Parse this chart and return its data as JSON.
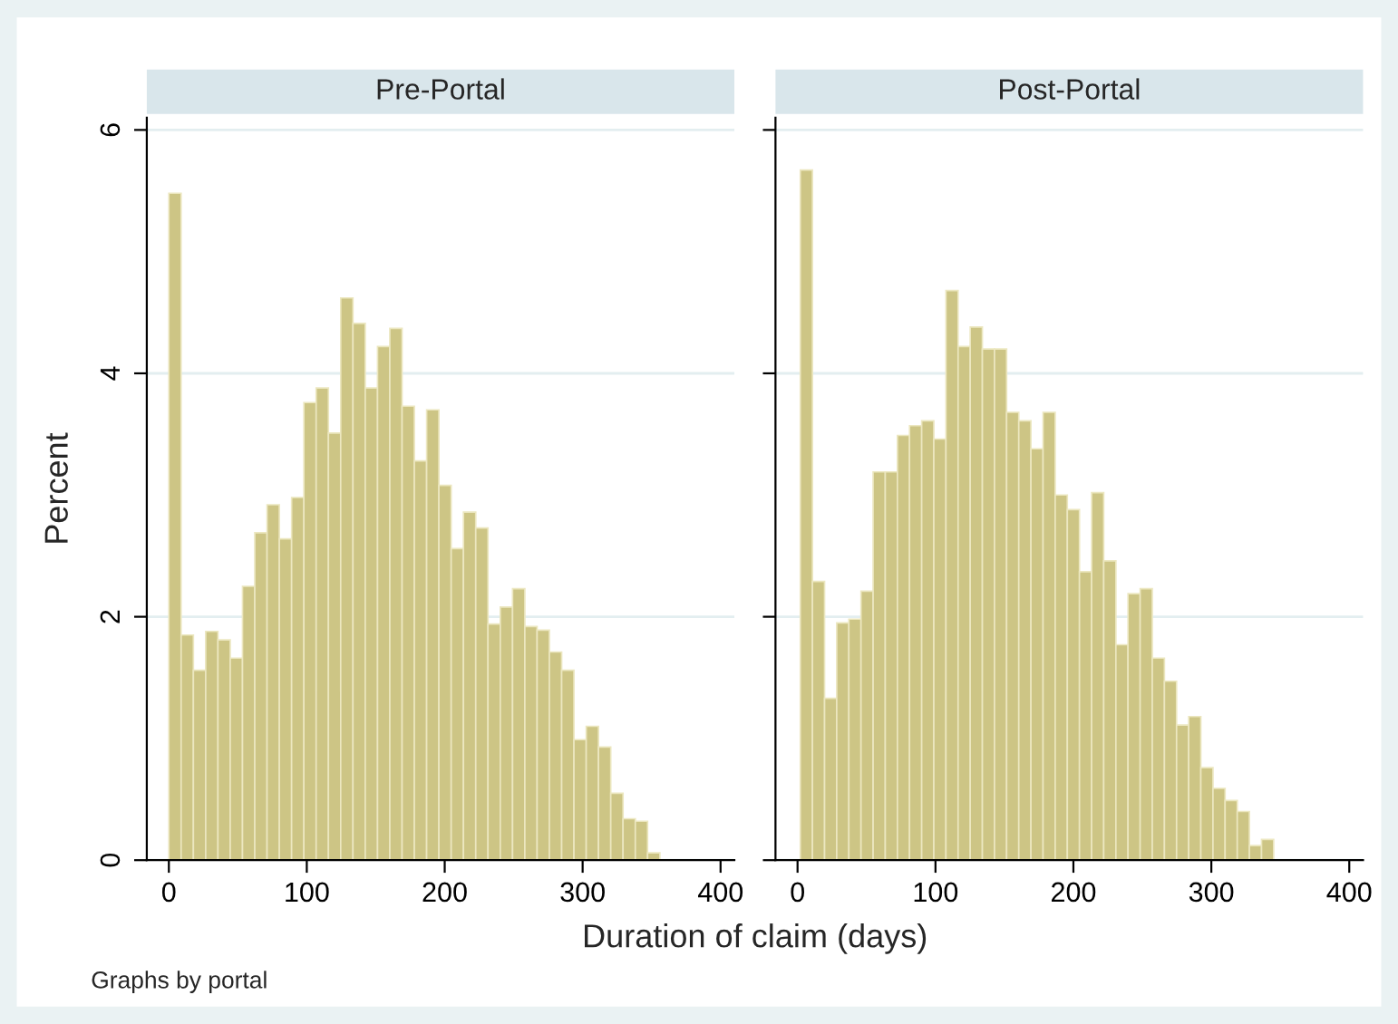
{
  "chart_data": [
    {
      "type": "histogram",
      "title": "Pre-Portal",
      "xlabel": "Duration of claim (days)",
      "ylabel": "Percent",
      "annotations": [
        "Graphs by portal"
      ],
      "color": "#cdc585",
      "bins": [
        0,
        8.9,
        17.8,
        26.7,
        35.6,
        44.5,
        53.4,
        62.3,
        71.2,
        80.1,
        89,
        97.9,
        106.8,
        115.7,
        124.6,
        133.5,
        142.4,
        151.3,
        160.2,
        169.1,
        178,
        186.9,
        195.8,
        204.7,
        213.6,
        222.5,
        231.4,
        240.3,
        249.2,
        258.1,
        267,
        275.9,
        284.8,
        293.7,
        302.6,
        311.5,
        320.4,
        329.3,
        338.2,
        347.1,
        356
      ],
      "values": [
        5.48,
        1.85,
        1.56,
        1.88,
        1.81,
        1.66,
        2.25,
        2.69,
        2.92,
        2.64,
        2.98,
        3.76,
        3.88,
        3.51,
        4.62,
        4.41,
        3.88,
        4.22,
        4.37,
        3.73,
        3.28,
        3.7,
        3.08,
        2.56,
        2.86,
        2.73,
        1.94,
        2.08,
        2.23,
        1.92,
        1.89,
        1.71,
        1.56,
        0.99,
        1.1,
        0.93,
        0.55,
        0.34,
        0.32,
        0.06
      ],
      "xlim": [
        -16,
        410
      ],
      "ylim": [
        0,
        6.1
      ],
      "xticks": [
        0,
        100,
        200,
        300,
        400
      ],
      "yticks": [
        0,
        2,
        4,
        6
      ],
      "grid": "y"
    },
    {
      "type": "histogram",
      "title": "Post-Portal",
      "color": "#cdc585",
      "bins": [
        2,
        10.8,
        19.6,
        28.4,
        37.2,
        46,
        54.8,
        63.6,
        72.4,
        81.2,
        90,
        98.8,
        107.6,
        116.4,
        125.2,
        134,
        142.8,
        151.6,
        160.4,
        169.2,
        178,
        186.8,
        195.6,
        204.4,
        213.2,
        222,
        230.8,
        239.6,
        248.4,
        257.2,
        266,
        274.8,
        283.6,
        292.4,
        301.2,
        310,
        318.8,
        327.6,
        336.4,
        345.2
      ],
      "values": [
        5.67,
        2.29,
        1.33,
        1.95,
        1.98,
        2.21,
        3.19,
        3.19,
        3.49,
        3.57,
        3.61,
        3.46,
        4.68,
        4.22,
        4.38,
        4.2,
        4.2,
        3.68,
        3.61,
        3.38,
        3.68,
        3,
        2.88,
        2.37,
        3.02,
        2.46,
        1.77,
        2.19,
        2.23,
        1.66,
        1.47,
        1.11,
        1.18,
        0.76,
        0.59,
        0.49,
        0.4,
        0.12,
        0.17
      ],
      "xlim": [
        -16,
        410
      ],
      "ylim": [
        0,
        6.1
      ],
      "xticks": [
        0,
        100,
        200,
        300,
        400
      ],
      "yticks": [
        0,
        2,
        4,
        6
      ],
      "grid": "y",
      "tick_labels": "x"
    }
  ]
}
